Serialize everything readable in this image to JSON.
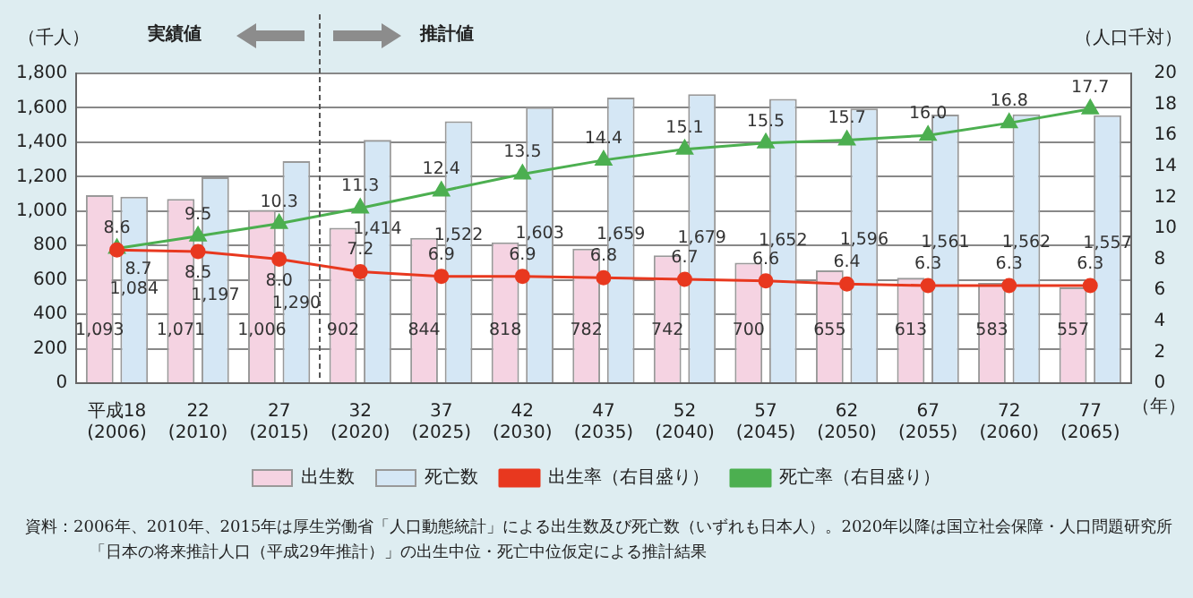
{
  "chart_data": {
    "type": "bar",
    "ylabel": "（千人）",
    "y2label": "（人口千対）",
    "xlabel": "（年）",
    "categories": [
      "平成18\n(2006)",
      "22\n(2010)",
      "27\n(2015)",
      "32\n(2020)",
      "37\n(2025)",
      "42\n(2030)",
      "47\n(2035)",
      "52\n(2040)",
      "57\n(2045)",
      "62\n(2050)",
      "67\n(2055)",
      "72\n(2060)",
      "77\n(2065)"
    ],
    "series": [
      {
        "name": "出生数",
        "color": "#f5d3e2",
        "values": [
          1093,
          1071,
          1006,
          902,
          844,
          818,
          782,
          742,
          700,
          655,
          613,
          583,
          557
        ],
        "value_labels": [
          "1,093",
          "1,071",
          "1,006",
          "902",
          "844",
          "818",
          "782",
          "742",
          "700",
          "655",
          "613",
          "583",
          "557"
        ]
      },
      {
        "name": "死亡数",
        "color": "#d5e7f5",
        "values": [
          1084,
          1197,
          1290,
          1414,
          1522,
          1603,
          1659,
          1679,
          1652,
          1596,
          1561,
          1562,
          1557
        ],
        "value_labels": [
          "1,084",
          "1,197",
          "1,290",
          "1,414",
          "1,522",
          "1,603",
          "1,659",
          "1,679",
          "1,652",
          "1,596",
          "1,561",
          "1,562",
          "1,557"
        ]
      },
      {
        "name": "出生率（右目盛り）",
        "type": "line",
        "axis": "y2",
        "marker": "circle",
        "color": "#e8381f",
        "values": [
          8.6,
          8.5,
          8.0,
          7.2,
          6.9,
          6.9,
          6.8,
          6.7,
          6.6,
          6.4,
          6.3,
          6.3,
          6.3
        ],
        "value_labels": [
          "8.6",
          "8.5",
          "8.0",
          "7.2",
          "6.9",
          "6.9",
          "6.8",
          "6.7",
          "6.6",
          "6.4",
          "6.3",
          "6.3",
          "6.3"
        ]
      },
      {
        "name": "死亡率（右目盛り）",
        "type": "line",
        "axis": "y2",
        "marker": "triangle",
        "color": "#4caf50",
        "values": [
          8.7,
          9.5,
          10.3,
          11.3,
          12.4,
          13.5,
          14.4,
          15.1,
          15.5,
          15.7,
          16.0,
          16.8,
          17.7
        ],
        "value_labels": [
          "8.7",
          "9.5",
          "10.3",
          "11.3",
          "12.4",
          "13.5",
          "14.4",
          "15.1",
          "15.5",
          "15.7",
          "16.0",
          "16.8",
          "17.7"
        ]
      }
    ],
    "ylim": [
      0,
      1800
    ],
    "yticks": [
      0,
      200,
      400,
      600,
      800,
      {
        "value": 1000,
        "label": "1,000"
      },
      {
        "value": 1200,
        "label": "1,200"
      },
      {
        "value": 1400,
        "label": "1,400"
      },
      {
        "value": 1600,
        "label": "1,600"
      },
      {
        "value": 1800,
        "label": "1,800"
      }
    ],
    "y2lim": [
      0,
      20
    ],
    "y2ticks": [
      0,
      2,
      4,
      6,
      8,
      10,
      12,
      14,
      16,
      18,
      20
    ],
    "grid": "y",
    "legend": "bottom",
    "annotations": [
      "実績値",
      "推計値",
      "資料：2006年、2010年、2015年は厚生労働省「人口動態統計」による出生数及び死亡数（いずれも日本人）。2020年以降は国立社会保障・人口問題研究所「日本の将来推計人口（平成29年推計）」の出生中位・死亡中位仮定による推計結果"
    ]
  }
}
